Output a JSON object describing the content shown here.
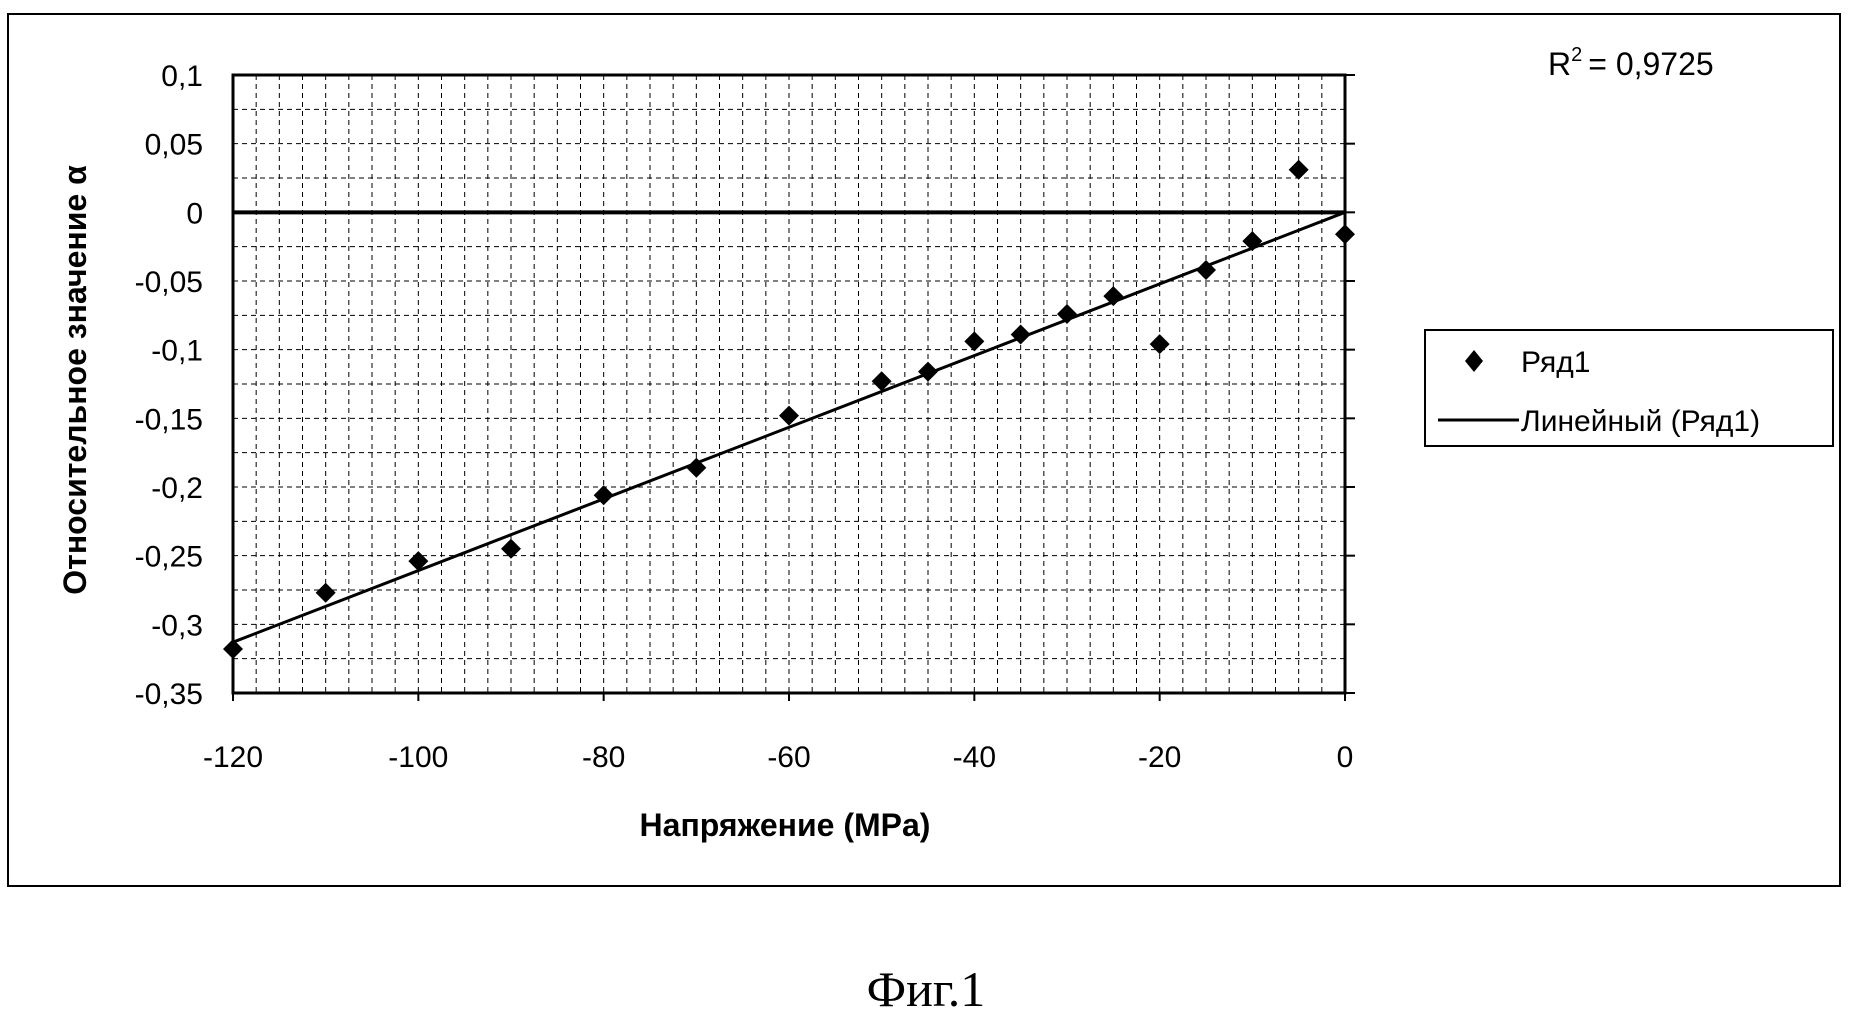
{
  "chart_data": {
    "type": "scatter",
    "xlabel": "Напряжение (MPa)",
    "ylabel": "Относительное значение α",
    "xlim": [
      -120,
      0
    ],
    "ylim": [
      -0.35,
      0.1
    ],
    "x_ticks": [
      "-120",
      "-100",
      "-80",
      "-60",
      "-40",
      "-20",
      "0"
    ],
    "y_ticks": [
      "0,1",
      "0,05",
      "0",
      "-0,05",
      "-0,1",
      "-0,15",
      "-0,2",
      "-0,25",
      "-0,3",
      "-0,35"
    ],
    "grid": true,
    "legend_position": "right",
    "series": [
      {
        "name": "Ряд1",
        "type": "scatter",
        "marker": "diamond",
        "points": [
          {
            "x": -120,
            "y": -0.318
          },
          {
            "x": -110,
            "y": -0.277
          },
          {
            "x": -100,
            "y": -0.254
          },
          {
            "x": -90,
            "y": -0.245
          },
          {
            "x": -80,
            "y": -0.206
          },
          {
            "x": -70,
            "y": -0.186
          },
          {
            "x": -60,
            "y": -0.148
          },
          {
            "x": -50,
            "y": -0.123
          },
          {
            "x": -45,
            "y": -0.116
          },
          {
            "x": -40,
            "y": -0.094
          },
          {
            "x": -35,
            "y": -0.089
          },
          {
            "x": -30,
            "y": -0.074
          },
          {
            "x": -25,
            "y": -0.061
          },
          {
            "x": -20,
            "y": -0.096
          },
          {
            "x": -15,
            "y": -0.042
          },
          {
            "x": -10,
            "y": -0.021
          },
          {
            "x": -5,
            "y": 0.031
          },
          {
            "x": 0,
            "y": -0.016
          }
        ]
      },
      {
        "name": "Линейный (Ряд1)",
        "type": "line",
        "points": [
          {
            "x": -120,
            "y": -0.313
          },
          {
            "x": 0,
            "y": 0
          }
        ]
      }
    ],
    "r_squared_label": "= 0,9725",
    "r_squared_prefix": "R",
    "r_squared_superscript": "2",
    "colors": {
      "marker": "#000000",
      "line": "#000000",
      "grid": "#000000",
      "background": "#ffffff"
    }
  },
  "caption": "Фиг.1"
}
